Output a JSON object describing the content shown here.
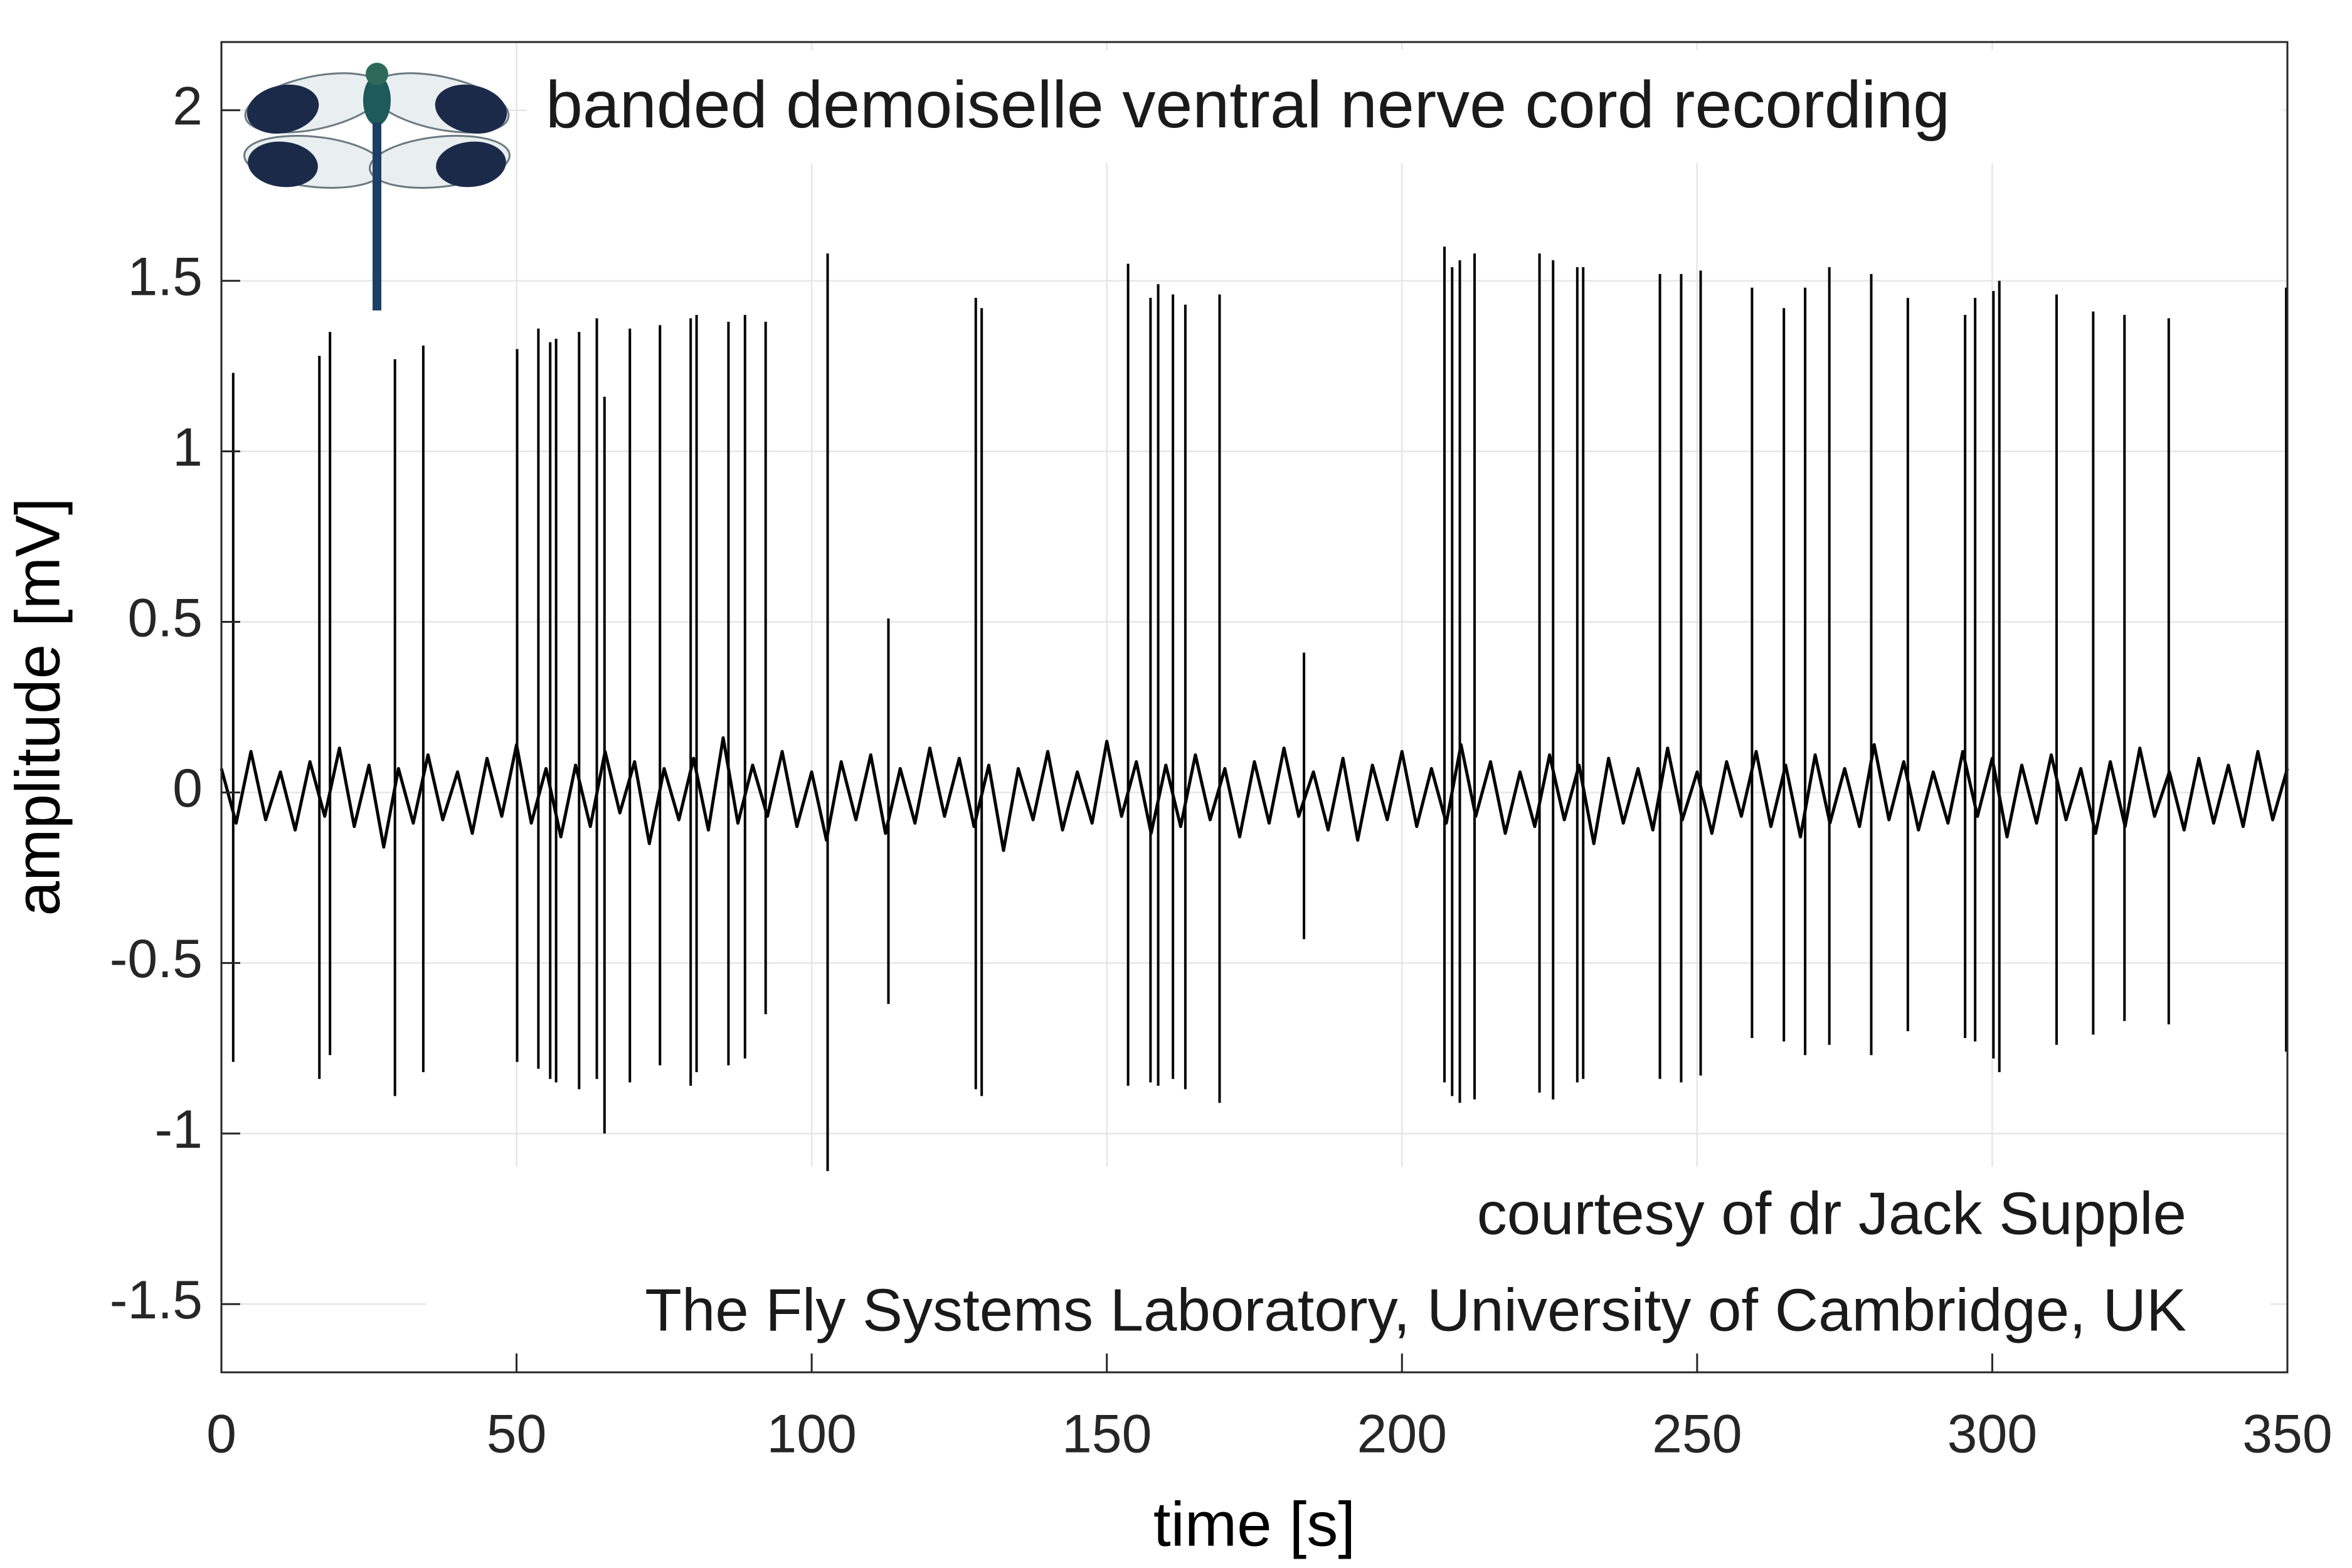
{
  "chart_data": {
    "type": "line",
    "xlabel": "time [s]",
    "ylabel": "amplitude [mV]",
    "annotations": [
      "banded demoiselle ventral nerve cord recording",
      "courtesy of dr Jack Supple",
      "The Fly Systems Laboratory, University of Cambridge, UK"
    ],
    "color": "#000000",
    "grid": true,
    "xlim": [
      0,
      350
    ],
    "ylim": [
      -1.7,
      2.2
    ],
    "xticks": [
      0,
      50,
      100,
      150,
      200,
      250,
      300,
      350
    ],
    "yticks": [
      -1.5,
      -1,
      -0.5,
      0,
      0.5,
      1,
      1.5,
      2
    ],
    "x": [
      0,
      2.5,
      5,
      7.5,
      10,
      12.5,
      15,
      17.5,
      20,
      22.5,
      25,
      27.5,
      30,
      32.5,
      35,
      37.5,
      40,
      42.5,
      45,
      47.5,
      50,
      52.5,
      55,
      57.5,
      60,
      62.5,
      65,
      67.5,
      70,
      72.5,
      75,
      77.5,
      80,
      82.5,
      85,
      87.5,
      90,
      92.5,
      95,
      97.5,
      100,
      102.5,
      105,
      107.5,
      110,
      112.5,
      115,
      117.5,
      120,
      122.5,
      125,
      127.5,
      130,
      132.5,
      135,
      137.5,
      140,
      142.5,
      145,
      147.5,
      150,
      152.5,
      155,
      157.5,
      160,
      162.5,
      165,
      167.5,
      170,
      172.5,
      175,
      177.5,
      180,
      182.5,
      185,
      187.5,
      190,
      192.5,
      195,
      197.5,
      200,
      202.5,
      205,
      207.5,
      210,
      212.5,
      215,
      217.5,
      220,
      222.5,
      225,
      227.5,
      230,
      232.5,
      235,
      237.5,
      240,
      242.5,
      245,
      247.5,
      250,
      252.5,
      255,
      257.5,
      260,
      262.5,
      265,
      267.5,
      270,
      272.5,
      275,
      277.5,
      280,
      282.5,
      285,
      287.5,
      290,
      292.5,
      295,
      297.5,
      300,
      302.5,
      305,
      307.5,
      310,
      312.5,
      315,
      317.5,
      320,
      322.5,
      325,
      327.5,
      330,
      332.5,
      335,
      337.5,
      340,
      342.5,
      345,
      347.5,
      350
    ],
    "values": [
      0.07,
      -0.09,
      0.12,
      -0.08,
      0.06,
      -0.11,
      0.09,
      -0.07,
      0.13,
      -0.1,
      0.08,
      -0.16,
      0.07,
      -0.09,
      0.11,
      -0.08,
      0.06,
      -0.12,
      0.1,
      -0.07,
      0.14,
      -0.09,
      0.07,
      -0.13,
      0.08,
      -0.1,
      0.12,
      -0.06,
      0.09,
      -0.15,
      0.07,
      -0.08,
      0.1,
      -0.11,
      0.16,
      -0.09,
      0.08,
      -0.07,
      0.12,
      -0.1,
      0.06,
      -0.14,
      0.09,
      -0.08,
      0.11,
      -0.12,
      0.07,
      -0.09,
      0.13,
      -0.07,
      0.1,
      -0.1,
      0.08,
      -0.17,
      0.07,
      -0.08,
      0.12,
      -0.11,
      0.06,
      -0.09,
      0.15,
      -0.07,
      0.09,
      -0.12,
      0.08,
      -0.1,
      0.11,
      -0.08,
      0.07,
      -0.13,
      0.09,
      -0.09,
      0.13,
      -0.07,
      0.06,
      -0.11,
      0.1,
      -0.14,
      0.08,
      -0.08,
      0.12,
      -0.1,
      0.07,
      -0.09,
      0.14,
      -0.07,
      0.09,
      -0.12,
      0.06,
      -0.1,
      0.11,
      -0.08,
      0.08,
      -0.15,
      0.1,
      -0.09,
      0.07,
      -0.11,
      0.13,
      -0.08,
      0.06,
      -0.12,
      0.09,
      -0.07,
      0.12,
      -0.1,
      0.08,
      -0.13,
      0.11,
      -0.09,
      0.07,
      -0.1,
      0.14,
      -0.08,
      0.09,
      -0.11,
      0.06,
      -0.09,
      0.12,
      -0.07,
      0.1,
      -0.13,
      0.08,
      -0.09,
      0.11,
      -0.08,
      0.07,
      -0.12,
      0.09,
      -0.1,
      0.13,
      -0.07,
      0.06,
      -0.11,
      0.1,
      -0.09,
      0.08,
      -0.1,
      0.12,
      -0.08,
      0.07
    ],
    "spikes": {
      "x": [
        2.0,
        16.6,
        18.4,
        29.4,
        34.2,
        50.1,
        53.7,
        55.7,
        56.7,
        60.6,
        63.6,
        64.9,
        69.2,
        74.3,
        79.5,
        80.5,
        85.9,
        88.7,
        92.2,
        102.7,
        113.0,
        127.8,
        128.8,
        153.6,
        157.4,
        158.7,
        161.2,
        163.3,
        169.1,
        183.4,
        207.2,
        208.5,
        209.8,
        212.3,
        223.3,
        225.6,
        229.7,
        230.7,
        243.7,
        247.3,
        250.6,
        259.3,
        264.7,
        268.3,
        272.4,
        279.5,
        285.7,
        295.4,
        297.1,
        300.2,
        301.2,
        310.9,
        317.1,
        322.4,
        329.9,
        349.8
      ],
      "peaks": [
        1.23,
        1.28,
        1.35,
        1.27,
        1.31,
        1.3,
        1.36,
        1.32,
        1.33,
        1.35,
        1.39,
        1.16,
        1.36,
        1.37,
        1.39,
        1.4,
        1.38,
        1.4,
        1.38,
        1.58,
        0.51,
        1.45,
        1.42,
        1.55,
        1.45,
        1.49,
        1.46,
        1.43,
        1.46,
        0.41,
        1.6,
        1.54,
        1.56,
        1.58,
        1.58,
        1.56,
        1.54,
        1.54,
        1.52,
        1.52,
        1.53,
        1.48,
        1.42,
        1.48,
        1.54,
        1.52,
        1.45,
        1.4,
        1.45,
        1.47,
        1.5,
        1.46,
        1.41,
        1.4,
        1.39,
        1.48
      ],
      "troughs": [
        -0.79,
        -0.84,
        -0.77,
        -0.89,
        -0.82,
        -0.79,
        -0.81,
        -0.84,
        -0.85,
        -0.87,
        -0.84,
        -1.0,
        -0.85,
        -0.8,
        -0.86,
        -0.82,
        -0.8,
        -0.78,
        -0.65,
        -1.11,
        -0.62,
        -0.87,
        -0.89,
        -0.86,
        -0.85,
        -0.86,
        -0.84,
        -0.87,
        -0.91,
        -0.43,
        -0.85,
        -0.89,
        -0.91,
        -0.9,
        -0.88,
        -0.9,
        -0.85,
        -0.84,
        -0.84,
        -0.85,
        -0.83,
        -0.72,
        -0.73,
        -0.77,
        -0.74,
        -0.77,
        -0.7,
        -0.72,
        -0.73,
        -0.78,
        -0.82,
        -0.74,
        -0.71,
        -0.67,
        -0.68,
        -0.76
      ]
    }
  }
}
